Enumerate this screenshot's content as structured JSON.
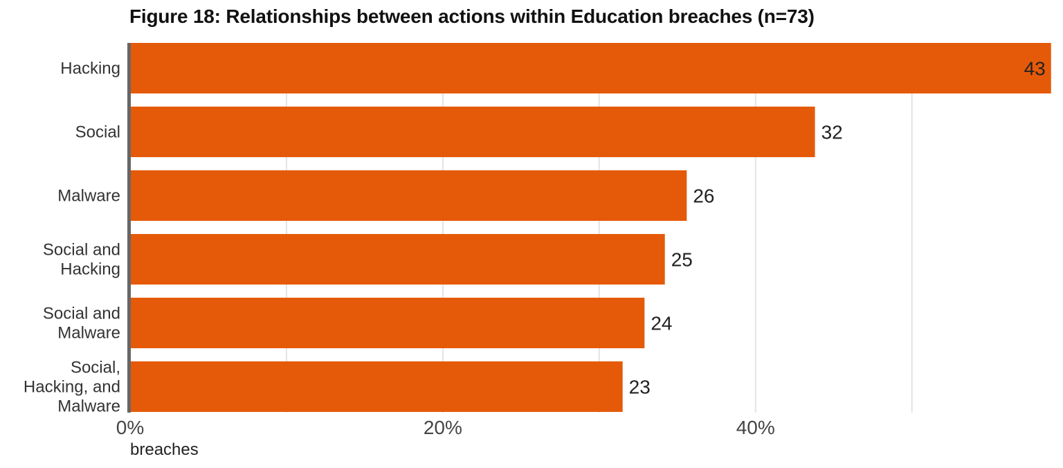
{
  "chart_data": {
    "type": "bar",
    "orientation": "horizontal",
    "title": "Figure 18: Relationships between actions within Education breaches (n=73)",
    "xlabel": "breaches",
    "ylabel": "",
    "categories": [
      "Hacking",
      "Social",
      "Malware",
      "Social and Hacking",
      "Social and Malware",
      "Social, Hacking, and Malware"
    ],
    "category_lines": [
      [
        "Hacking"
      ],
      [
        "Social"
      ],
      [
        "Malware"
      ],
      [
        "Social and",
        "Hacking"
      ],
      [
        "Social and",
        "Malware"
      ],
      [
        "Social,",
        "Hacking, and",
        "Malware"
      ]
    ],
    "values": [
      43,
      32,
      26,
      25,
      24,
      23
    ],
    "percent_of_n": [
      58.9,
      43.8,
      35.6,
      34.2,
      32.9,
      31.5
    ],
    "xlim": [
      0,
      59
    ],
    "xticks": [
      0,
      20,
      40
    ],
    "xtick_labels": [
      "0%",
      "20%",
      "40%"
    ],
    "gridlines_at": [
      10,
      20,
      30,
      40,
      50
    ],
    "grid": true,
    "legend": "none",
    "bar_color": "#e55a09",
    "grid_color": "#e3e3e3",
    "axis_color": "#666666"
  }
}
